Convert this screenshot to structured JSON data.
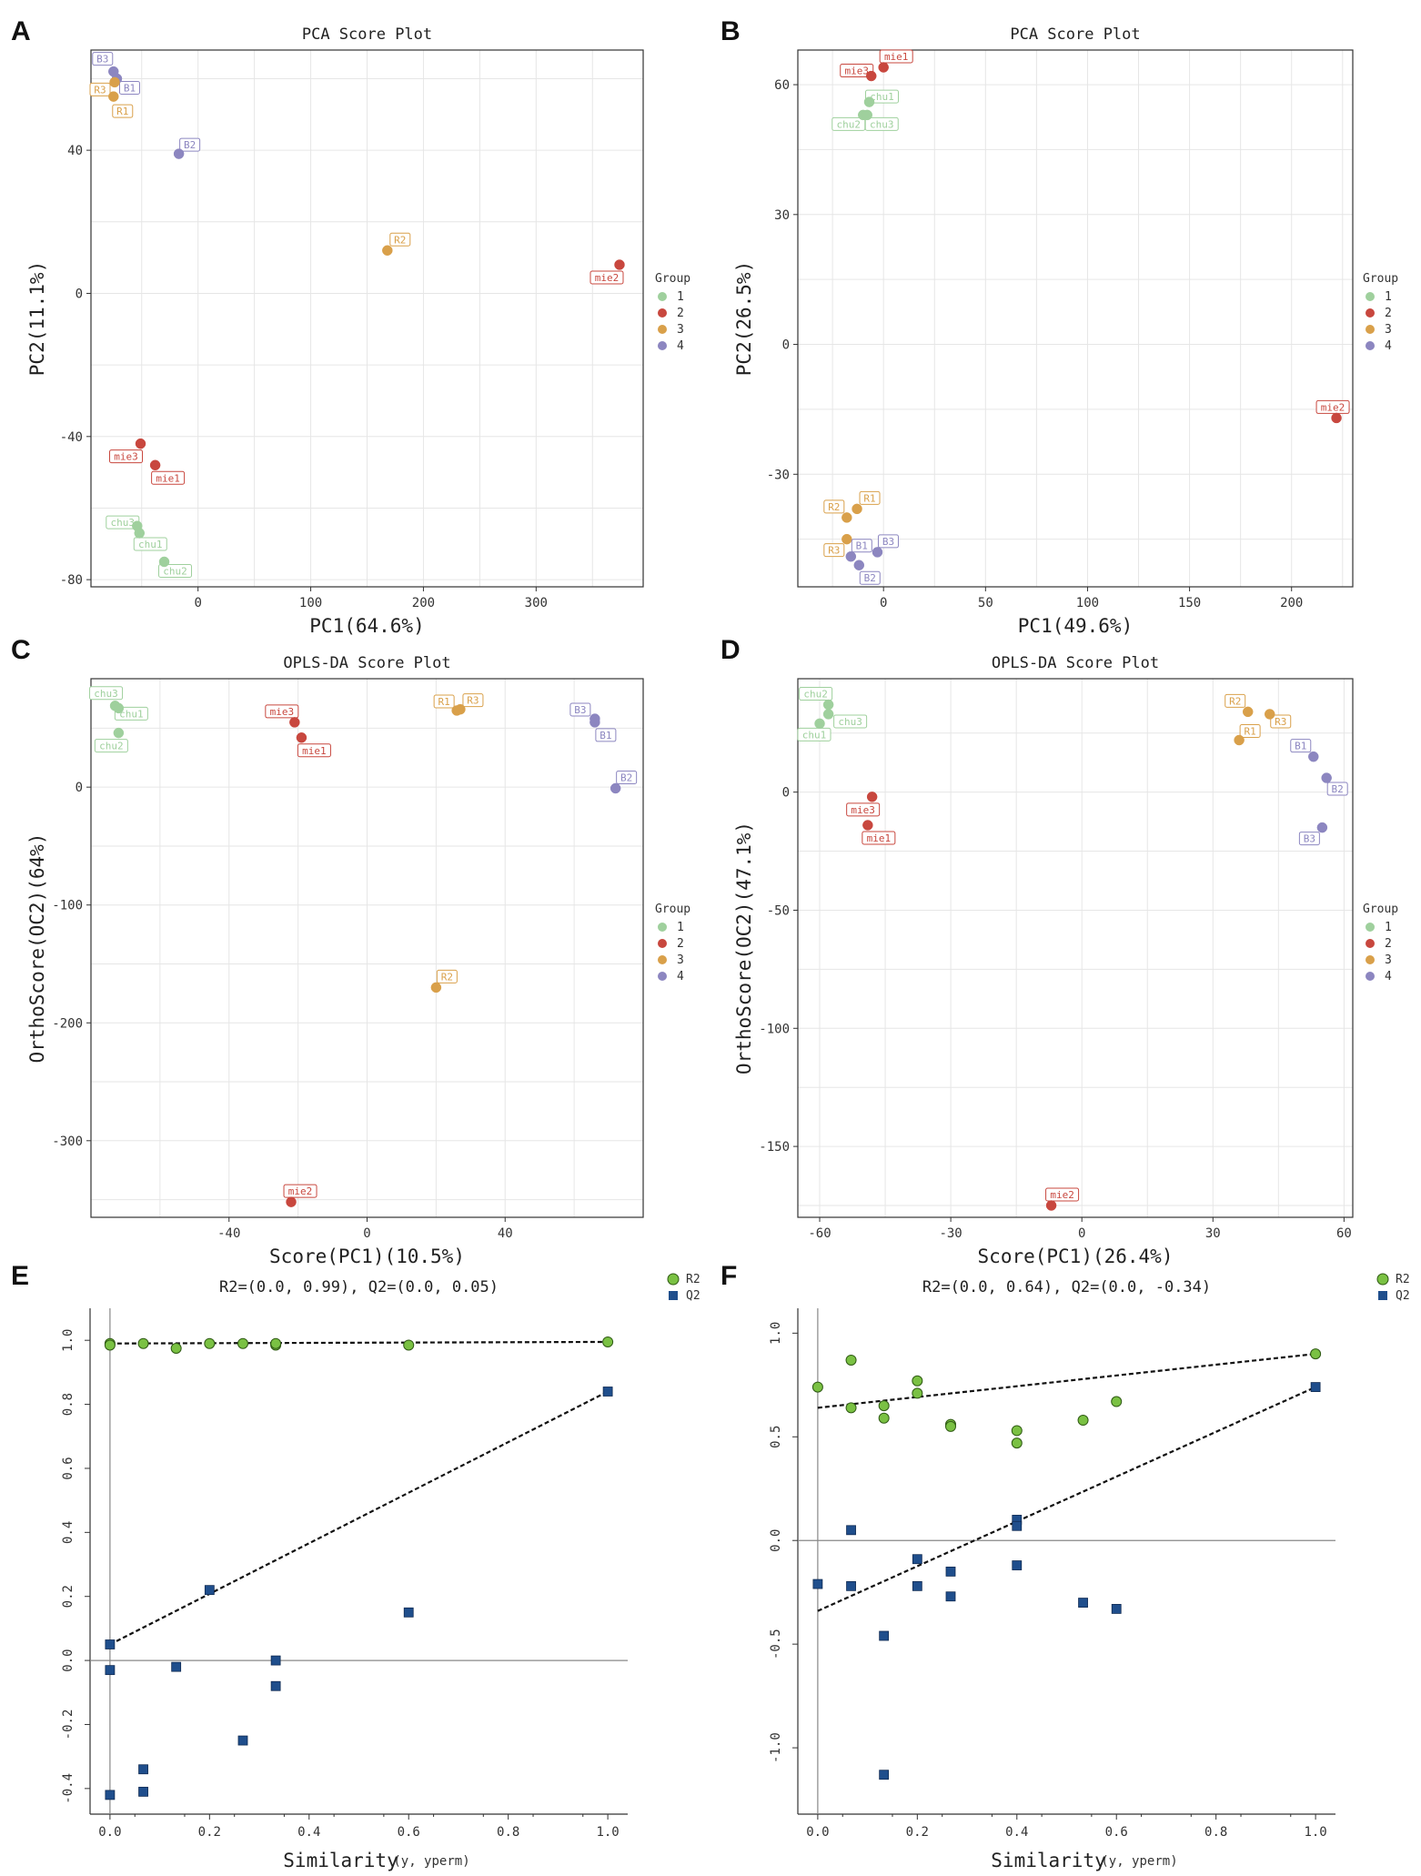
{
  "figure": {
    "panels": [
      "A",
      "B",
      "C",
      "D",
      "E",
      "F"
    ]
  },
  "colors": {
    "group_1": "#9fd09d",
    "group_2": "#c8473e",
    "group_3": "#d9a04a",
    "group_4": "#8c86c0",
    "r2": "#7ac143",
    "q2": "#1f4e8c",
    "grid": "#e6e6e6",
    "frame": "#333333"
  },
  "chart_data": [
    {
      "panel": "A",
      "type": "scatter",
      "title": "PCA Score Plot",
      "xlabel": "PC1(64.6%)",
      "ylabel": "PC2(11.1%)",
      "xlim": [
        -95,
        395
      ],
      "ylim": [
        -82,
        68
      ],
      "xticks": [
        0,
        100,
        200,
        300
      ],
      "yticks": [
        -80,
        -40,
        0,
        40
      ],
      "xticklabels": [
        "0",
        "100",
        "200",
        "300"
      ],
      "yticklabels": [
        "-80",
        "-40",
        "0",
        "40"
      ],
      "legend": {
        "title": "Group",
        "entries": [
          "1",
          "2",
          "3",
          "4"
        ],
        "position": "right"
      },
      "points": [
        {
          "label": "B3",
          "group": 4,
          "x": -75,
          "y": 62
        },
        {
          "label": "B1",
          "group": 4,
          "x": -72,
          "y": 60
        },
        {
          "label": "R3",
          "group": 3,
          "x": -74,
          "y": 59
        },
        {
          "label": "R1",
          "group": 3,
          "x": -75,
          "y": 55
        },
        {
          "label": "B2",
          "group": 4,
          "x": -17,
          "y": 39
        },
        {
          "label": "R2",
          "group": 3,
          "x": 168,
          "y": 12
        },
        {
          "label": "mie2",
          "group": 2,
          "x": 374,
          "y": 8
        },
        {
          "label": "mie3",
          "group": 2,
          "x": -51,
          "y": -42
        },
        {
          "label": "mie1",
          "group": 2,
          "x": -38,
          "y": -48
        },
        {
          "label": "chu3",
          "group": 1,
          "x": -54,
          "y": -65
        },
        {
          "label": "chu1",
          "group": 1,
          "x": -52,
          "y": -67
        },
        {
          "label": "chu2",
          "group": 1,
          "x": -30,
          "y": -75
        }
      ]
    },
    {
      "panel": "B",
      "type": "scatter",
      "title": "PCA Score Plot",
      "xlabel": "PC1(49.6%)",
      "ylabel": "PC2(26.5%)",
      "xlim": [
        -42,
        230
      ],
      "ylim": [
        -56,
        68
      ],
      "xticks": [
        0,
        50,
        100,
        150,
        200
      ],
      "yticks": [
        -30,
        0,
        30,
        60
      ],
      "xticklabels": [
        "0",
        "50",
        "100",
        "150",
        "200"
      ],
      "yticklabels": [
        "-30",
        "0",
        "30",
        "60"
      ],
      "legend": {
        "title": "Group",
        "entries": [
          "1",
          "2",
          "3",
          "4"
        ],
        "position": "right"
      },
      "points": [
        {
          "label": "mie3",
          "group": 2,
          "x": -6,
          "y": 62
        },
        {
          "label": "mie1",
          "group": 2,
          "x": 0,
          "y": 64
        },
        {
          "label": "chu1",
          "group": 1,
          "x": -7,
          "y": 56
        },
        {
          "label": "chu2",
          "group": 1,
          "x": -10,
          "y": 53
        },
        {
          "label": "chu3",
          "group": 1,
          "x": -8,
          "y": 53
        },
        {
          "label": "mie2",
          "group": 2,
          "x": 222,
          "y": -17
        },
        {
          "label": "R1",
          "group": 3,
          "x": -13,
          "y": -38
        },
        {
          "label": "R2",
          "group": 3,
          "x": -18,
          "y": -40
        },
        {
          "label": "R3",
          "group": 3,
          "x": -18,
          "y": -45
        },
        {
          "label": "B1",
          "group": 4,
          "x": -16,
          "y": -49
        },
        {
          "label": "B2",
          "group": 4,
          "x": -12,
          "y": -51
        },
        {
          "label": "B3",
          "group": 4,
          "x": -3,
          "y": -48
        }
      ]
    },
    {
      "panel": "C",
      "type": "scatter",
      "title": "OPLS-DA Score Plot",
      "xlabel": "Score(PC1)(10.5%)",
      "ylabel": "OrthoScore(OC2)(64%)",
      "xlim": [
        -80,
        80
      ],
      "ylim": [
        -365,
        92
      ],
      "xticks": [
        -40,
        0,
        40
      ],
      "yticks": [
        -300,
        -200,
        -100,
        0
      ],
      "xticklabels": [
        "-40",
        "0",
        "40"
      ],
      "yticklabels": [
        "-300",
        "-200",
        "-100",
        "0"
      ],
      "legend": {
        "title": "Group",
        "entries": [
          "1",
          "2",
          "3",
          "4"
        ],
        "position": "right"
      },
      "points": [
        {
          "label": "chu3",
          "group": 1,
          "x": -73,
          "y": 69
        },
        {
          "label": "chu1",
          "group": 1,
          "x": -72,
          "y": 67
        },
        {
          "label": "chu2",
          "group": 1,
          "x": -72,
          "y": 46
        },
        {
          "label": "mie3",
          "group": 2,
          "x": -21,
          "y": 55
        },
        {
          "label": "mie1",
          "group": 2,
          "x": -19,
          "y": 42
        },
        {
          "label": "R3",
          "group": 3,
          "x": 27,
          "y": 66
        },
        {
          "label": "R1",
          "group": 3,
          "x": 26,
          "y": 65
        },
        {
          "label": "B3",
          "group": 4,
          "x": 66,
          "y": 58
        },
        {
          "label": "B1",
          "group": 4,
          "x": 66,
          "y": 55
        },
        {
          "label": "B2",
          "group": 4,
          "x": 72,
          "y": -1
        },
        {
          "label": "R2",
          "group": 3,
          "x": 20,
          "y": -170
        },
        {
          "label": "mie2",
          "group": 2,
          "x": -22,
          "y": -352
        }
      ]
    },
    {
      "panel": "D",
      "type": "scatter",
      "title": "OPLS-DA Score Plot",
      "xlabel": "Score(PC1)(26.4%)",
      "ylabel": "OrthoScore(OC2)(47.1%)",
      "xlim": [
        -65,
        62
      ],
      "ylim": [
        -180,
        48
      ],
      "xticks": [
        -60,
        -30,
        0,
        30,
        60
      ],
      "yticks": [
        -150,
        -100,
        -50,
        0
      ],
      "xticklabels": [
        "-60",
        "-30",
        "0",
        "30",
        "60"
      ],
      "yticklabels": [
        "-150",
        "-100",
        "-50",
        "0"
      ],
      "legend": {
        "title": "Group",
        "entries": [
          "1",
          "2",
          "3",
          "4"
        ],
        "position": "right"
      },
      "points": [
        {
          "label": "chu2",
          "group": 1,
          "x": -58,
          "y": 37
        },
        {
          "label": "chu3",
          "group": 1,
          "x": -58,
          "y": 33
        },
        {
          "label": "chu1",
          "group": 1,
          "x": -60,
          "y": 29
        },
        {
          "label": "mie3",
          "group": 2,
          "x": -48,
          "y": -2
        },
        {
          "label": "mie1",
          "group": 2,
          "x": -49,
          "y": -14
        },
        {
          "label": "R2",
          "group": 3,
          "x": 38,
          "y": 34
        },
        {
          "label": "R3",
          "group": 3,
          "x": 43,
          "y": 33
        },
        {
          "label": "R1",
          "group": 3,
          "x": 36,
          "y": 22
        },
        {
          "label": "B1",
          "group": 4,
          "x": 53,
          "y": 15
        },
        {
          "label": "B2",
          "group": 4,
          "x": 56,
          "y": 6
        },
        {
          "label": "B3",
          "group": 4,
          "x": 55,
          "y": -15
        },
        {
          "label": "mie2",
          "group": 2,
          "x": -7,
          "y": -175
        }
      ]
    },
    {
      "panel": "E",
      "type": "scatter",
      "title": "R2=(0.0, 0.99), Q2=(0.0, 0.05)",
      "xlabel": "Similarity",
      "xlabel_sub": "(y, yperm)",
      "ylabel": "",
      "xlim": [
        -0.04,
        1.04
      ],
      "ylim": [
        -0.48,
        1.1
      ],
      "xticks": [
        0,
        0.2,
        0.4,
        0.6,
        0.8,
        1.0
      ],
      "yticks": [
        -0.4,
        -0.2,
        0,
        0.2,
        0.4,
        0.6,
        0.8,
        1.0
      ],
      "xticklabels": [
        "0.0",
        "0.2",
        "0.4",
        "0.6",
        "0.8",
        "1.0"
      ],
      "yticklabels": [
        "-0.4",
        "-0.2",
        "0.0",
        "0.2",
        "0.4",
        "0.6",
        "0.8",
        "1.0"
      ],
      "legend": {
        "entries": [
          "R2",
          "Q2"
        ],
        "position": "top-right"
      },
      "series": [
        {
          "name": "R2",
          "marker": "circle",
          "x": [
            0.0,
            0.0,
            0.067,
            0.133,
            0.2,
            0.267,
            0.333,
            0.333,
            0.6,
            1.0
          ],
          "y": [
            0.99,
            0.985,
            0.99,
            0.975,
            0.99,
            0.99,
            0.985,
            0.99,
            0.985,
            0.995
          ]
        },
        {
          "name": "Q2",
          "marker": "square",
          "x": [
            0.0,
            0.0,
            0.0,
            0.067,
            0.067,
            0.133,
            0.2,
            0.267,
            0.333,
            0.333,
            0.6,
            1.0
          ],
          "y": [
            0.05,
            -0.03,
            -0.42,
            -0.34,
            -0.41,
            -0.02,
            0.22,
            -0.25,
            0.0,
            -0.08,
            0.15,
            0.84
          ]
        }
      ],
      "regression": [
        {
          "name": "R2",
          "from": [
            0.0,
            0.99
          ],
          "to": [
            1.0,
            0.995
          ]
        },
        {
          "name": "Q2",
          "from": [
            0.0,
            0.05
          ],
          "to": [
            1.0,
            0.84
          ]
        }
      ]
    },
    {
      "panel": "F",
      "type": "scatter",
      "title": "R2=(0.0, 0.64), Q2=(0.0, -0.34)",
      "xlabel": "Similarity",
      "xlabel_sub": "(y, yperm)",
      "ylabel": "",
      "xlim": [
        -0.04,
        1.04
      ],
      "ylim": [
        -1.32,
        1.12
      ],
      "xticks": [
        0,
        0.2,
        0.4,
        0.6,
        0.8,
        1.0
      ],
      "yticks": [
        -1.0,
        -0.5,
        0,
        0.5,
        1.0
      ],
      "xticklabels": [
        "0.0",
        "0.2",
        "0.4",
        "0.6",
        "0.8",
        "1.0"
      ],
      "yticklabels": [
        "-1.0",
        "-0.5",
        "0.0",
        "0.5",
        "1.0"
      ],
      "legend": {
        "entries": [
          "R2",
          "Q2"
        ],
        "position": "top-right"
      },
      "series": [
        {
          "name": "R2",
          "marker": "circle",
          "x": [
            0.0,
            0.067,
            0.067,
            0.133,
            0.133,
            0.2,
            0.2,
            0.267,
            0.267,
            0.4,
            0.4,
            0.533,
            0.6,
            1.0
          ],
          "y": [
            0.74,
            0.87,
            0.64,
            0.65,
            0.59,
            0.77,
            0.71,
            0.56,
            0.55,
            0.53,
            0.47,
            0.58,
            0.67,
            0.9
          ]
        },
        {
          "name": "Q2",
          "marker": "square",
          "x": [
            0.0,
            0.067,
            0.067,
            0.133,
            0.133,
            0.2,
            0.2,
            0.267,
            0.267,
            0.4,
            0.4,
            0.4,
            0.533,
            0.6,
            1.0
          ],
          "y": [
            -0.21,
            0.05,
            -0.22,
            -0.46,
            -1.13,
            -0.09,
            -0.22,
            -0.15,
            -0.27,
            0.1,
            0.07,
            -0.12,
            -0.3,
            -0.33,
            0.74
          ]
        }
      ],
      "regression": [
        {
          "name": "R2",
          "from": [
            0.0,
            0.64
          ],
          "to": [
            1.0,
            0.9
          ]
        },
        {
          "name": "Q2",
          "from": [
            0.0,
            -0.34
          ],
          "to": [
            1.0,
            0.74
          ]
        }
      ]
    }
  ]
}
